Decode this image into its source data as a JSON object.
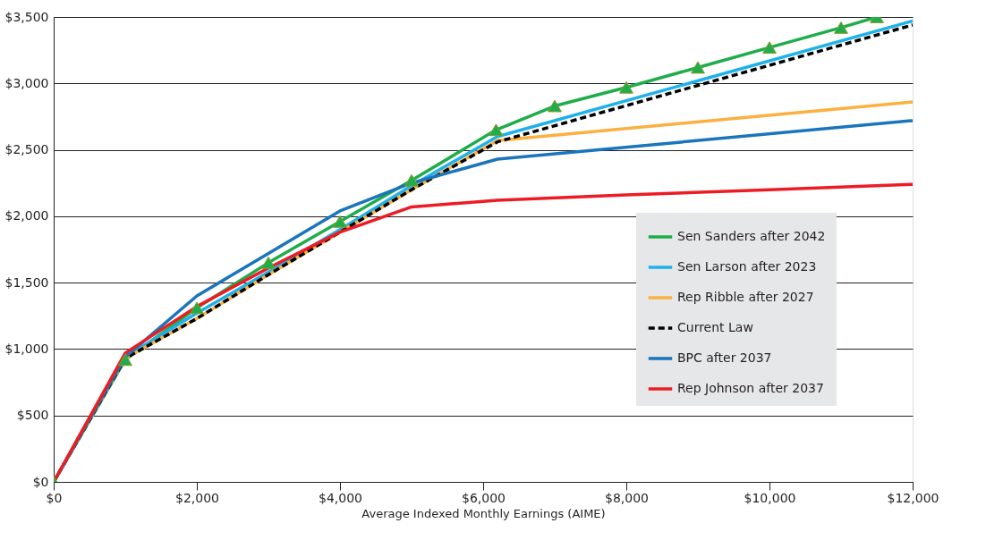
{
  "chart_data": {
    "type": "line",
    "xlabel": "Average Indexed Monthly Earnings (AIME)",
    "xlim": [
      0,
      12000
    ],
    "ylim": [
      0,
      3500
    ],
    "xticks": [
      {
        "value": 0,
        "label": "$0"
      },
      {
        "value": 2000,
        "label": "$2,000"
      },
      {
        "value": 4000,
        "label": "$4,000"
      },
      {
        "value": 6000,
        "label": "$6,000"
      },
      {
        "value": 8000,
        "label": "$8,000"
      },
      {
        "value": 10000,
        "label": "$10,000"
      },
      {
        "value": 12000,
        "label": "$12,000"
      }
    ],
    "yticks": [
      {
        "value": 0,
        "label": "$0"
      },
      {
        "value": 500,
        "label": "$500"
      },
      {
        "value": 1000,
        "label": "$1,000"
      },
      {
        "value": 1500,
        "label": "$1,500"
      },
      {
        "value": 2000,
        "label": "$2,000"
      },
      {
        "value": 2500,
        "label": "$2,500"
      },
      {
        "value": 3000,
        "label": "$3,000"
      },
      {
        "value": 3500,
        "label": "$3,500"
      }
    ],
    "grid": "y",
    "legend": "bottom right",
    "series": [
      {
        "name": "Sen Sanders after 2042",
        "color": "#1fad4b",
        "marker": "triangle",
        "x": [
          0,
          1000,
          2000,
          3000,
          4000,
          5000,
          6180,
          7000,
          8000,
          9000,
          10000,
          11000,
          11500
        ],
        "values": [
          0,
          920,
          1310,
          1650,
          1960,
          2270,
          2650,
          2830,
          2970,
          3120,
          3270,
          3420,
          3500
        ]
      },
      {
        "name": "Sen Larson after 2023",
        "color": "#1eb1ea",
        "x": [
          0,
          1000,
          2000,
          3000,
          4000,
          5000,
          6200,
          12000
        ],
        "values": [
          0,
          940,
          1270,
          1580,
          1900,
          2230,
          2600,
          3470
        ]
      },
      {
        "name": "Rep Ribble after 2027",
        "color": "#fbb040",
        "x": [
          0,
          1000,
          2000,
          3000,
          4000,
          5000,
          6200,
          12000
        ],
        "values": [
          0,
          930,
          1230,
          1560,
          1880,
          2200,
          2570,
          2860
        ]
      },
      {
        "name": "Current Law",
        "color": "#000000",
        "line_style": "dashed",
        "x": [
          0,
          1000,
          2000,
          3000,
          4000,
          5000,
          6200,
          12000
        ],
        "values": [
          0,
          930,
          1230,
          1560,
          1880,
          2200,
          2560,
          3440
        ]
      },
      {
        "name": "BPC after 2037",
        "color": "#1a75bb",
        "x": [
          0,
          1000,
          2000,
          3000,
          4000,
          5000,
          6200,
          12000
        ],
        "values": [
          0,
          940,
          1400,
          1720,
          2040,
          2250,
          2430,
          2720
        ]
      },
      {
        "name": "Rep Johnson after 2037",
        "color": "#ed1c24",
        "x": [
          0,
          1000,
          2000,
          3000,
          4000,
          5000,
          6200,
          8000,
          10000,
          12000
        ],
        "values": [
          0,
          970,
          1320,
          1610,
          1880,
          2070,
          2120,
          2160,
          2200,
          2240
        ]
      }
    ]
  }
}
